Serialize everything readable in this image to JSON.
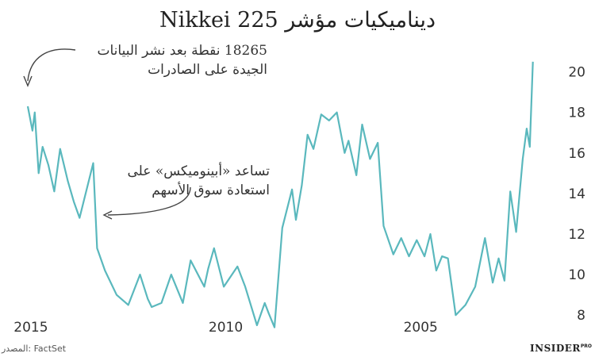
{
  "title": "ديناميكيات مؤشر Nikkei 225",
  "annotations": [
    {
      "line1": "18265 نقطة بعد نشر البيانات",
      "line2": "الجيدة على الصادرات"
    },
    {
      "line1": "تساعد «أبينوميكس» على",
      "line2": "استعادة سوق الأسهم"
    }
  ],
  "source": "المصدر: FactSet",
  "logo": {
    "text": "INSIDER",
    "sup": "PRO"
  },
  "colors": {
    "line": "#5ab8bd",
    "text": "#222222"
  },
  "chart_data": {
    "type": "line",
    "title": "ديناميكيات مؤشر Nikkei 225",
    "x_direction": "reversed",
    "xlim": [
      2001.87,
      2015.1
    ],
    "ylim": [
      7.5,
      21
    ],
    "x_ticks": [
      2015,
      2010,
      2005
    ],
    "y_ticks": [
      8,
      10,
      12,
      14,
      16,
      18,
      20
    ],
    "y_axis_position": "right",
    "grid": false,
    "series": [
      {
        "x": [
          2015.08,
          2014.96,
          2014.9,
          2014.8,
          2014.7,
          2014.55,
          2014.4,
          2014.25,
          2014.05,
          2013.9,
          2013.75,
          2013.4,
          2013.3,
          2013.1,
          2012.8,
          2012.5,
          2012.2,
          2012.0,
          2011.9,
          2011.65,
          2011.4,
          2011.1,
          2010.9,
          2010.55,
          2010.45,
          2010.3,
          2010.05,
          2009.7,
          2009.5,
          2009.2,
          2009.0,
          2008.9,
          2008.75,
          2008.55,
          2008.3,
          2008.2,
          2008.05,
          2007.9,
          2007.75,
          2007.55,
          2007.35,
          2007.15,
          2006.95,
          2006.85,
          2006.65,
          2006.5,
          2006.3,
          2006.1,
          2005.95,
          2005.7,
          2005.5,
          2005.3,
          2005.1,
          2004.9,
          2004.75,
          2004.6,
          2004.45,
          2004.3,
          2004.1,
          2003.85,
          2003.6,
          2003.35,
          2003.15,
          2003.0,
          2002.85,
          2002.7,
          2002.55,
          2002.38,
          2002.28,
          2002.2,
          2002.12
        ],
        "y": [
          18.3,
          17.1,
          18.0,
          15.0,
          16.3,
          15.4,
          14.1,
          16.2,
          14.6,
          13.6,
          12.8,
          15.5,
          11.3,
          10.2,
          9.0,
          8.5,
          10.0,
          8.8,
          8.4,
          8.6,
          10.0,
          8.6,
          10.7,
          9.4,
          10.3,
          11.3,
          9.4,
          10.4,
          9.4,
          7.5,
          8.6,
          8.1,
          7.4,
          12.3,
          14.2,
          12.7,
          14.4,
          16.9,
          16.2,
          17.9,
          17.6,
          18.0,
          16.0,
          16.6,
          14.9,
          17.4,
          15.7,
          16.5,
          12.4,
          11.0,
          11.8,
          10.9,
          11.7,
          10.9,
          12.0,
          10.2,
          10.9,
          10.8,
          8.0,
          8.5,
          9.4,
          11.8,
          9.6,
          10.8,
          9.7,
          14.1,
          12.1,
          15.7,
          17.2,
          16.3,
          20.5
        ]
      }
    ]
  }
}
